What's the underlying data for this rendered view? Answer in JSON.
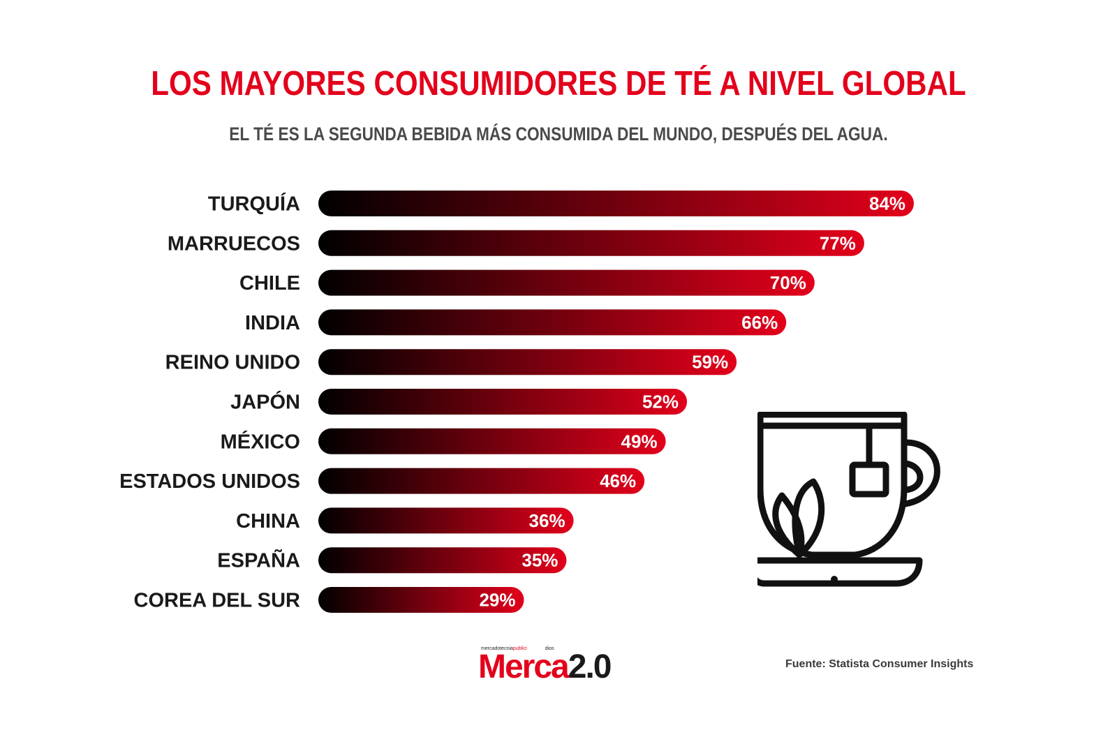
{
  "header": {
    "title": "LOS MAYORES CONSUMIDORES DE TÉ A NIVEL GLOBAL",
    "subtitle": "EL TÉ ES LA SEGUNDA BEBIDA MÁS CONSUMIDA DEL MUNDO, DESPUÉS DEL AGUA."
  },
  "chart_data": {
    "type": "bar",
    "orientation": "horizontal",
    "title": "LOS MAYORES CONSUMIDORES DE TÉ A NIVEL GLOBAL",
    "subtitle": "EL TÉ ES LA SEGUNDA BEBIDA MÁS CONSUMIDA DEL MUNDO, DESPUÉS DEL AGUA.",
    "categories": [
      "TURQUÍA",
      "MARRUECOS",
      "CHILE",
      "INDIA",
      "REINO UNIDO",
      "JAPÓN",
      "MÉXICO",
      "ESTADOS UNIDOS",
      "CHINA",
      "ESPAÑA",
      "COREA DEL SUR"
    ],
    "values": [
      84,
      77,
      70,
      66,
      59,
      52,
      49,
      46,
      36,
      35,
      29
    ],
    "value_labels": [
      "84%",
      "77%",
      "70%",
      "66%",
      "59%",
      "52%",
      "49%",
      "46%",
      "36%",
      "35%",
      "29%"
    ],
    "unit": "%",
    "grid": false,
    "legend": "none",
    "bar_gradient": [
      "#000000",
      "#e3001b"
    ]
  },
  "footer": {
    "logo": {
      "tagline_prefix": "mercadotecnia",
      "tagline_red": "publici",
      "tagline_suffix": "dios",
      "brand_red": "Merca",
      "brand_black": "2.0"
    },
    "source": "Fuente: Statista Consumer Insights"
  },
  "colors": {
    "accent": "#e3001b",
    "text_dark": "#1a1a1a",
    "subtitle": "#4a4a4a"
  },
  "icons": [
    "tea-cup-icon"
  ]
}
